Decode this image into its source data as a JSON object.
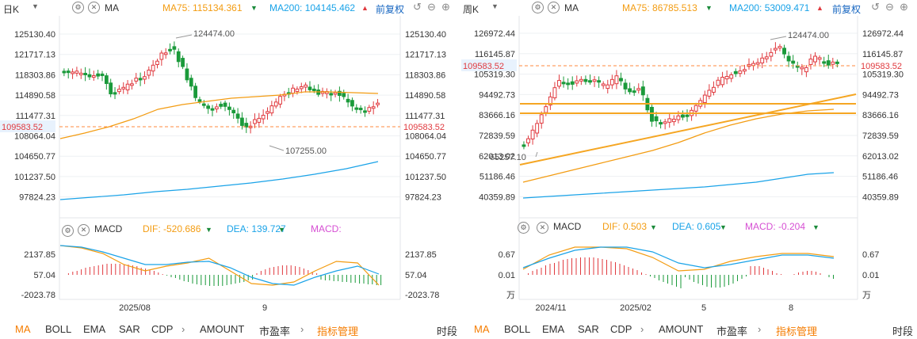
{
  "left": {
    "period": "日K",
    "ma_label": "MA",
    "ma75": "MA75:  115134.361",
    "ma200": "MA200:  104145.462",
    "restore": "前复权",
    "price_ticks": [
      "125130.40",
      "121717.13",
      "118303.86",
      "114890.58",
      "111477.31",
      "108064.04",
      "104650.77",
      "101237.50",
      "97824.23"
    ],
    "current_price": "109583.52",
    "high_label": "124474.00",
    "low_label": "107255.00",
    "macd_label": "MACD",
    "dif": "DIF:  -520.686",
    "dea": "DEA:  139.727",
    "macd": "MACD:",
    "macd_ticks": [
      "2137.85",
      "57.04",
      "-2023.78"
    ],
    "x_labels": [
      "2025/08",
      "9"
    ]
  },
  "right": {
    "period": "周K",
    "ma_label": "MA",
    "ma75": "MA75:  86785.513",
    "ma200": "MA200:  53009.471",
    "restore": "前复权",
    "price_ticks": [
      "126972.44",
      "116145.87",
      "105319.30",
      "94492.73",
      "83666.16",
      "72839.59",
      "62013.02",
      "51186.46",
      "40359.89"
    ],
    "current_price": "109583.52",
    "high_label": "124474.00",
    "low_label": "65257.10",
    "macd_label": "MACD",
    "dif": "DIF:  0.503",
    "dea": "DEA:  0.605",
    "macd": "MACD:  -0.204",
    "macd_ticks": [
      "0.67",
      "0.01",
      "万"
    ],
    "x_labels": [
      "2024/11",
      "2025/02",
      "5",
      "8"
    ]
  },
  "bottom_tabs": [
    "MA",
    "BOLL",
    "EMA",
    "SAR",
    "CDP",
    "AMOUNT",
    "市盈率",
    "指标管理",
    "时段"
  ],
  "colors": {
    "up": "#e0393e",
    "down": "#1a9a3a",
    "ma75": "#f39c12",
    "ma200": "#1aa3e8",
    "accent": "#f57c00"
  }
}
